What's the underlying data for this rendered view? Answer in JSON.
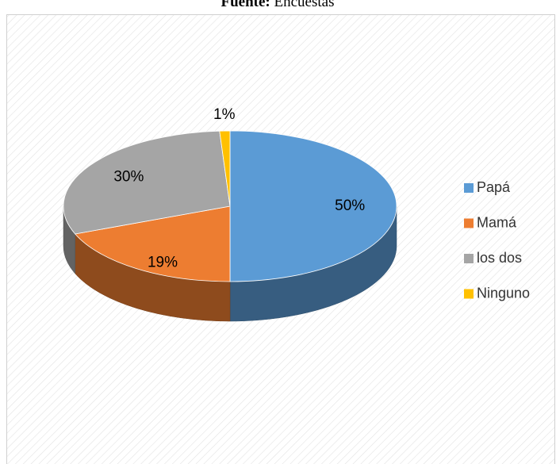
{
  "caption": {
    "label": "Fuente:",
    "text": "Encuestas"
  },
  "chart_data": {
    "type": "pie3d",
    "categories": [
      "Papá",
      "Mamá",
      "los dos",
      "Ninguno"
    ],
    "values": [
      50,
      19,
      30,
      1
    ],
    "value_labels": [
      "50%",
      "19%",
      "30%",
      "1%"
    ],
    "colors": [
      "#5b9bd5",
      "#ed7d31",
      "#a5a5a5",
      "#ffc000"
    ],
    "legend": "right"
  }
}
